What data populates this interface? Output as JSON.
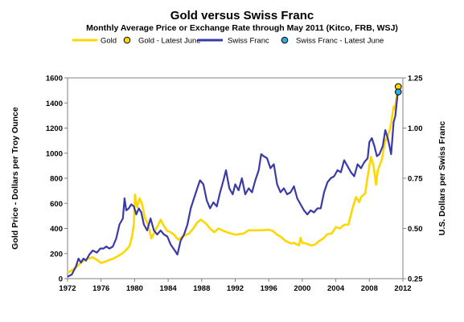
{
  "chart_data": {
    "type": "line",
    "title": "Gold versus Swiss Franc",
    "subtitle": "Monthly Average Price or Exchange Rate through May 2011 (Kitco, FRB, WSJ)",
    "ylabel": "Gold Price - Dollars per Troy Ounce",
    "y2label": "U.S. Dollars per Swiss Franc",
    "xlim": [
      1972,
      2012
    ],
    "ylim": [
      0,
      1600
    ],
    "y2lim": [
      0.25,
      1.25
    ],
    "xticks": [
      1972,
      1976,
      1980,
      1984,
      1988,
      1992,
      1996,
      2000,
      2004,
      2008,
      2012
    ],
    "yticks": [
      0,
      200,
      400,
      600,
      800,
      1000,
      1200,
      1400,
      1600
    ],
    "y2ticks": [
      "0.25",
      "0.50",
      "0.75",
      "1.00",
      "1.25"
    ],
    "y2tick_values": [
      0.25,
      0.5,
      0.75,
      1.0,
      1.25
    ],
    "grid": false,
    "legend_position": "top",
    "legend": [
      {
        "label": "Gold",
        "kind": "line",
        "color": "#FFD700"
      },
      {
        "label": "Gold - Latest June",
        "kind": "marker",
        "color": "#FFD700"
      },
      {
        "label": "Swiss Franc",
        "kind": "line",
        "color": "#3A3AA8"
      },
      {
        "label": "Swiss Franc - Latest June",
        "kind": "marker",
        "color": "#33AADD"
      }
    ],
    "series": [
      {
        "name": "Gold",
        "axis": "left",
        "color": "#FFD700",
        "x": [
          1972.0,
          1972.5,
          1973.0,
          1973.5,
          1974.0,
          1974.5,
          1975.0,
          1975.5,
          1976.0,
          1976.7,
          1977.0,
          1977.5,
          1978.0,
          1978.5,
          1979.0,
          1979.4,
          1979.7,
          1979.9,
          1980.05,
          1980.3,
          1980.6,
          1980.9,
          1981.2,
          1981.6,
          1982.0,
          1982.5,
          1982.9,
          1983.1,
          1983.5,
          1983.9,
          1984.3,
          1984.7,
          1985.2,
          1985.6,
          1986.0,
          1986.5,
          1987.0,
          1987.5,
          1987.9,
          1988.5,
          1989.0,
          1989.5,
          1990.0,
          1990.6,
          1991.0,
          1992.0,
          1993.0,
          1993.6,
          1994.0,
          1995.0,
          1996.0,
          1996.5,
          1997.0,
          1997.5,
          1998.0,
          1998.7,
          1999.0,
          1999.6,
          1999.8,
          2000.0,
          2000.5,
          2001.0,
          2001.5,
          2002.0,
          2002.5,
          2003.0,
          2003.5,
          2004.0,
          2004.5,
          2005.0,
          2005.5,
          2006.0,
          2006.4,
          2006.8,
          2007.0,
          2007.5,
          2008.0,
          2008.2,
          2008.5,
          2008.8,
          2009.0,
          2009.5,
          2009.9,
          2010.0,
          2010.5,
          2010.9,
          2011.0,
          2011.4
        ],
        "y": [
          48,
          65,
          90,
          120,
          150,
          160,
          170,
          150,
          125,
          140,
          150,
          160,
          180,
          200,
          230,
          260,
          340,
          430,
          670,
          570,
          640,
          590,
          490,
          430,
          320,
          390,
          440,
          470,
          420,
          380,
          370,
          350,
          310,
          330,
          345,
          360,
          400,
          450,
          470,
          440,
          400,
          370,
          400,
          380,
          370,
          350,
          360,
          385,
          385,
          385,
          390,
          380,
          350,
          330,
          300,
          280,
          285,
          265,
          325,
          285,
          280,
          265,
          270,
          300,
          320,
          355,
          360,
          410,
          400,
          430,
          430,
          560,
          650,
          610,
          650,
          680,
          900,
          970,
          900,
          750,
          860,
          950,
          1110,
          1100,
          1200,
          1370,
          1350,
          1500
        ]
      },
      {
        "name": "Swiss Franc",
        "axis": "right",
        "color": "#3A3AA8",
        "x": [
          1972.0,
          1972.5,
          1973.0,
          1973.3,
          1973.6,
          1973.9,
          1974.2,
          1974.6,
          1975.0,
          1975.5,
          1975.9,
          1976.3,
          1976.6,
          1977.0,
          1977.4,
          1977.8,
          1978.2,
          1978.6,
          1978.8,
          1979.0,
          1979.3,
          1979.6,
          1979.9,
          1980.2,
          1980.5,
          1980.8,
          1981.1,
          1981.5,
          1981.9,
          1982.3,
          1982.7,
          1983.1,
          1983.5,
          1983.9,
          1984.3,
          1984.8,
          1985.1,
          1985.5,
          1985.9,
          1986.3,
          1986.7,
          1987.0,
          1987.4,
          1987.8,
          1988.2,
          1988.6,
          1989.0,
          1989.4,
          1989.8,
          1990.2,
          1990.6,
          1990.9,
          1991.3,
          1991.7,
          1992.0,
          1992.4,
          1992.8,
          1993.2,
          1993.6,
          1994.0,
          1994.4,
          1994.8,
          1995.1,
          1995.4,
          1995.8,
          1996.2,
          1996.6,
          1997.0,
          1997.4,
          1997.8,
          1998.2,
          1998.6,
          1999.0,
          1999.4,
          1999.8,
          2000.2,
          2000.6,
          2001.0,
          2001.4,
          2001.8,
          2002.2,
          2002.6,
          2003.0,
          2003.4,
          2003.8,
          2004.2,
          2004.6,
          2005.0,
          2005.4,
          2005.8,
          2006.2,
          2006.6,
          2007.0,
          2007.4,
          2007.8,
          2008.0,
          2008.3,
          2008.6,
          2008.9,
          2009.2,
          2009.6,
          2009.9,
          2010.2,
          2010.6,
          2010.9,
          2011.1,
          2011.4
        ],
        "y": [
          0.26,
          0.27,
          0.31,
          0.35,
          0.33,
          0.35,
          0.34,
          0.37,
          0.39,
          0.38,
          0.4,
          0.4,
          0.41,
          0.4,
          0.41,
          0.45,
          0.52,
          0.55,
          0.65,
          0.59,
          0.6,
          0.62,
          0.61,
          0.57,
          0.6,
          0.58,
          0.52,
          0.49,
          0.55,
          0.49,
          0.47,
          0.49,
          0.47,
          0.46,
          0.42,
          0.39,
          0.37,
          0.44,
          0.47,
          0.52,
          0.6,
          0.64,
          0.69,
          0.74,
          0.72,
          0.64,
          0.6,
          0.63,
          0.61,
          0.68,
          0.74,
          0.79,
          0.7,
          0.67,
          0.72,
          0.69,
          0.75,
          0.67,
          0.7,
          0.68,
          0.74,
          0.79,
          0.87,
          0.86,
          0.85,
          0.8,
          0.82,
          0.72,
          0.68,
          0.7,
          0.67,
          0.68,
          0.71,
          0.65,
          0.62,
          0.59,
          0.57,
          0.59,
          0.58,
          0.6,
          0.6,
          0.68,
          0.73,
          0.75,
          0.76,
          0.79,
          0.78,
          0.84,
          0.81,
          0.78,
          0.76,
          0.82,
          0.8,
          0.83,
          0.85,
          0.93,
          0.95,
          0.91,
          0.86,
          0.87,
          0.91,
          0.99,
          0.95,
          0.87,
          1.03,
          1.06,
          1.18
        ]
      }
    ],
    "markers": [
      {
        "name": "Gold - Latest June",
        "axis": "left",
        "x": 2011.45,
        "y": 1530,
        "color": "#FFD700"
      },
      {
        "name": "Swiss Franc - Latest June",
        "axis": "right",
        "x": 2011.45,
        "y": 1.18,
        "color": "#33AADD"
      }
    ]
  }
}
